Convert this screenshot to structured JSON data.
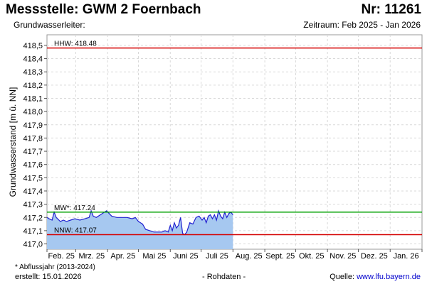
{
  "header": {
    "title": "Messstelle: GWM 2 Foernbach",
    "number": "Nr: 11261",
    "aquifer": "Grundwasserleiter:",
    "period": "Zeitraum: Feb 2025 - Jan 2026"
  },
  "footer": {
    "footnote": "* Abflussjahr (2013-2024)",
    "created": "erstellt:  15.01.2026",
    "rawdata": "- Rohdaten -",
    "source_label": "Quelle: ",
    "source_link": "www.lfu.bayern.de"
  },
  "chart_data": {
    "type": "area",
    "ylabel": "Grundwasserstand [m ü. NN]",
    "ylim": [
      416.96,
      418.58
    ],
    "yticks": [
      "418,5",
      "418,4",
      "418,3",
      "418,2",
      "418,1",
      "418,0",
      "417,9",
      "417,8",
      "417,7",
      "417,6",
      "417,5",
      "417,4",
      "417,3",
      "417,2",
      "417,1",
      "417,0"
    ],
    "ytick_values": [
      418.5,
      418.4,
      418.3,
      418.2,
      418.1,
      418.0,
      417.9,
      417.8,
      417.7,
      417.6,
      417.5,
      417.4,
      417.3,
      417.2,
      417.1,
      417.0
    ],
    "xlim": [
      "2025-02-01",
      "2026-02-01"
    ],
    "xticks": [
      "Feb. 25",
      "Mrz. 25",
      "Apr. 25",
      "Mai 25",
      "Juni 25",
      "Juli 25",
      "Aug. 25",
      "Sept. 25",
      "Okt. 25",
      "Nov. 25",
      "Dez. 25",
      "Jan. 26"
    ],
    "grid": true,
    "reference_lines": [
      {
        "label": "HHW: 418.48",
        "value": 418.48,
        "color": "#d40000"
      },
      {
        "label": "MW*: 417.24",
        "value": 417.24,
        "color": "#00a000"
      },
      {
        "label": "NNW: 417.07",
        "value": 417.07,
        "color": "#d40000"
      }
    ],
    "series": [
      {
        "color": "#2020d0",
        "fill": "#a6c8f0",
        "x": [
          "2025-02-01",
          "2025-02-03",
          "2025-02-06",
          "2025-02-08",
          "2025-02-10",
          "2025-02-14",
          "2025-02-17",
          "2025-02-20",
          "2025-02-24",
          "2025-02-28",
          "2025-03-05",
          "2025-03-10",
          "2025-03-14",
          "2025-03-16",
          "2025-03-18",
          "2025-03-21",
          "2025-03-25",
          "2025-03-31",
          "2025-04-05",
          "2025-04-10",
          "2025-04-15",
          "2025-04-20",
          "2025-04-25",
          "2025-04-28",
          "2025-05-01",
          "2025-05-03",
          "2025-05-05",
          "2025-05-08",
          "2025-05-12",
          "2025-05-16",
          "2025-05-20",
          "2025-05-24",
          "2025-05-27",
          "2025-05-30",
          "2025-06-01",
          "2025-06-03",
          "2025-06-05",
          "2025-06-07",
          "2025-06-09",
          "2025-06-11",
          "2025-06-13",
          "2025-06-15",
          "2025-06-17",
          "2025-06-20",
          "2025-06-23",
          "2025-06-26",
          "2025-06-29",
          "2025-07-02",
          "2025-07-04",
          "2025-07-06",
          "2025-07-08",
          "2025-07-10",
          "2025-07-12",
          "2025-07-14",
          "2025-07-16",
          "2025-07-18",
          "2025-07-20",
          "2025-07-22",
          "2025-07-24",
          "2025-07-26",
          "2025-07-28",
          "2025-07-30",
          "2025-08-01"
        ],
        "y": [
          417.2,
          417.19,
          417.18,
          417.24,
          417.2,
          417.17,
          417.18,
          417.17,
          417.18,
          417.19,
          417.18,
          417.19,
          417.2,
          417.25,
          417.21,
          417.2,
          417.22,
          417.25,
          417.21,
          417.2,
          417.2,
          417.2,
          417.19,
          417.2,
          417.17,
          417.16,
          417.15,
          417.11,
          417.1,
          417.09,
          417.09,
          417.09,
          417.1,
          417.09,
          417.14,
          417.1,
          417.16,
          417.12,
          417.14,
          417.2,
          417.08,
          417.07,
          417.09,
          417.16,
          417.15,
          417.2,
          417.21,
          417.18,
          417.2,
          417.16,
          417.21,
          417.22,
          417.19,
          417.22,
          417.18,
          417.25,
          417.21,
          417.19,
          417.24,
          417.2,
          417.23,
          417.24,
          417.22
        ]
      }
    ]
  }
}
